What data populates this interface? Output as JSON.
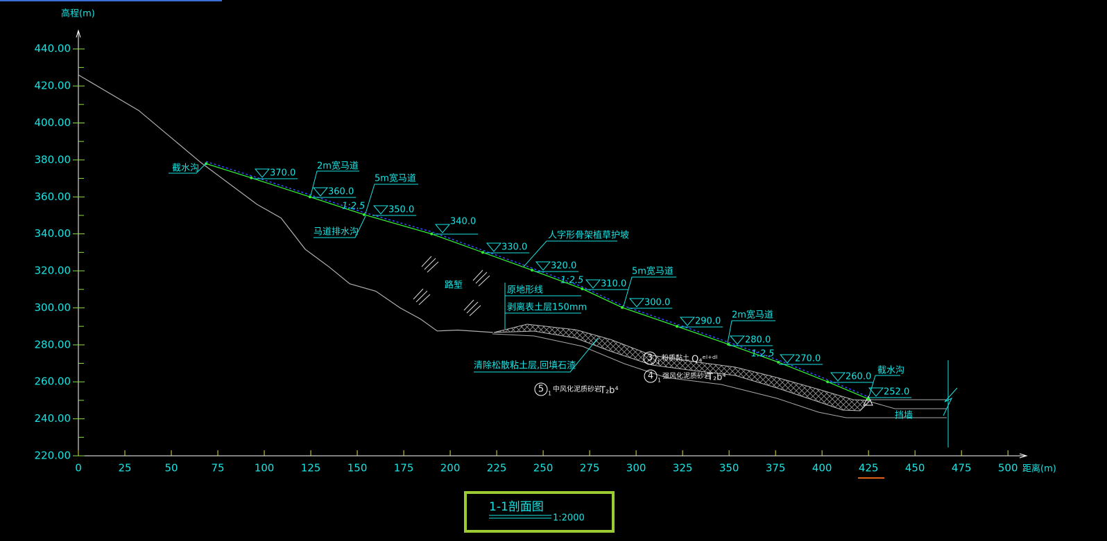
{
  "chart_data": {
    "type": "line",
    "x_label": "距离(m)",
    "y_label": "高程(m)",
    "xlim": [
      0,
      510
    ],
    "ylim": [
      220,
      450
    ],
    "xticks": [
      0,
      25,
      50,
      75,
      100,
      125,
      150,
      175,
      200,
      225,
      250,
      275,
      300,
      325,
      350,
      375,
      400,
      425,
      450,
      475,
      500
    ],
    "yticks": [
      {
        "value": 220,
        "label": "220.00"
      },
      {
        "value": 240,
        "label": "240.00"
      },
      {
        "value": 260,
        "label": "260.00"
      },
      {
        "value": 280,
        "label": "280.00"
      },
      {
        "value": 300,
        "label": "300.00"
      },
      {
        "value": 320,
        "label": "320.00"
      },
      {
        "value": 340,
        "label": "340.00"
      },
      {
        "value": 360,
        "label": "360.00"
      },
      {
        "value": 380,
        "label": "380.00"
      },
      {
        "value": 400,
        "label": "400.00"
      },
      {
        "value": 420,
        "label": "420.00"
      },
      {
        "value": 440,
        "label": "440.00"
      }
    ],
    "series": [
      {
        "color": "#b0b0b0",
        "x": [
          0,
          32.5,
          66,
          96,
          109,
          122,
          135,
          146,
          160,
          173,
          184,
          193,
          204,
          223
        ],
        "values": [
          426,
          406.7,
          378.5,
          356,
          348.6,
          331.7,
          322,
          313,
          309,
          300,
          294,
          287.5,
          288,
          286.7
        ]
      },
      {
        "color": "#33ee33",
        "x": [
          68.7,
          93,
          124.6,
          153.7,
          190,
          217.5,
          244,
          271,
          292.5,
          322,
          349.6,
          376.5,
          403,
          425
        ],
        "values": [
          378,
          370.3,
          360,
          350.4,
          340,
          330,
          320.4,
          310.3,
          300.2,
          290,
          280.3,
          270.6,
          260,
          250.7
        ]
      }
    ]
  },
  "annotations": [
    "截水沟",
    "2m宽马道",
    "5m宽马道",
    "马道排水沟",
    "人字形骨架植草护坡",
    "5m宽马道",
    "2m宽马道",
    "截水沟",
    "原地形线",
    "剥离表土层150mm",
    "清除松散粘土层,回填石渣",
    "路堑",
    "挡墙"
  ],
  "slope_ratios": [
    "1:2.5",
    "1:2.5",
    "1:2.5"
  ],
  "elevation_marks": [
    "370.0",
    "360.0",
    "350.0",
    "340.0",
    "330.0",
    "320.0",
    "310.0",
    "300.0",
    "290.0",
    "280.0",
    "270.0",
    "260.0",
    "252.0"
  ],
  "strata": [
    {
      "no": "5",
      "sub": "1",
      "rock": "中风化泥质砂岩",
      "age": "T₂b⁴"
    },
    {
      "no": "3",
      "sub": "1",
      "rock": "粉质黏土",
      "age": "Q₄ᵉˡ⁺ᵈˡ"
    },
    {
      "no": "4",
      "sub": "1",
      "rock": "强风化泥质砂岩",
      "age": "T₂b⁴"
    }
  ],
  "title_block": {
    "title": "1-1剖面图",
    "scale": "1:2000"
  }
}
